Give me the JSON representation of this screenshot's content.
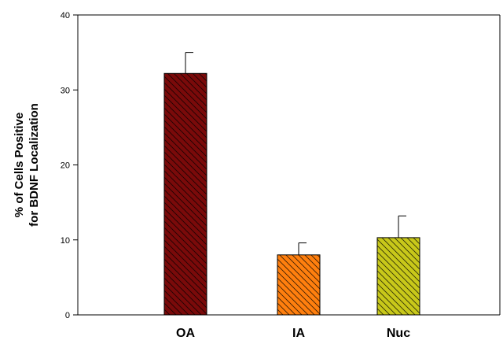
{
  "chart_data": {
    "type": "bar",
    "categories": [
      "OA",
      "IA",
      "Nuc"
    ],
    "values": [
      32.2,
      8.0,
      10.3
    ],
    "errors": [
      2.8,
      1.6,
      2.9
    ],
    "ylabel_line1": "% of Cells Positive",
    "ylabel_line2": "for BDNF Localization",
    "ylim": [
      0,
      40
    ],
    "yticks": [
      0,
      10,
      20,
      30,
      40
    ],
    "colors": [
      "#7a0a0a",
      "#ff7f0e",
      "#c8c81a"
    ],
    "hatch": "diagonal",
    "grid": false,
    "legend": "none"
  }
}
